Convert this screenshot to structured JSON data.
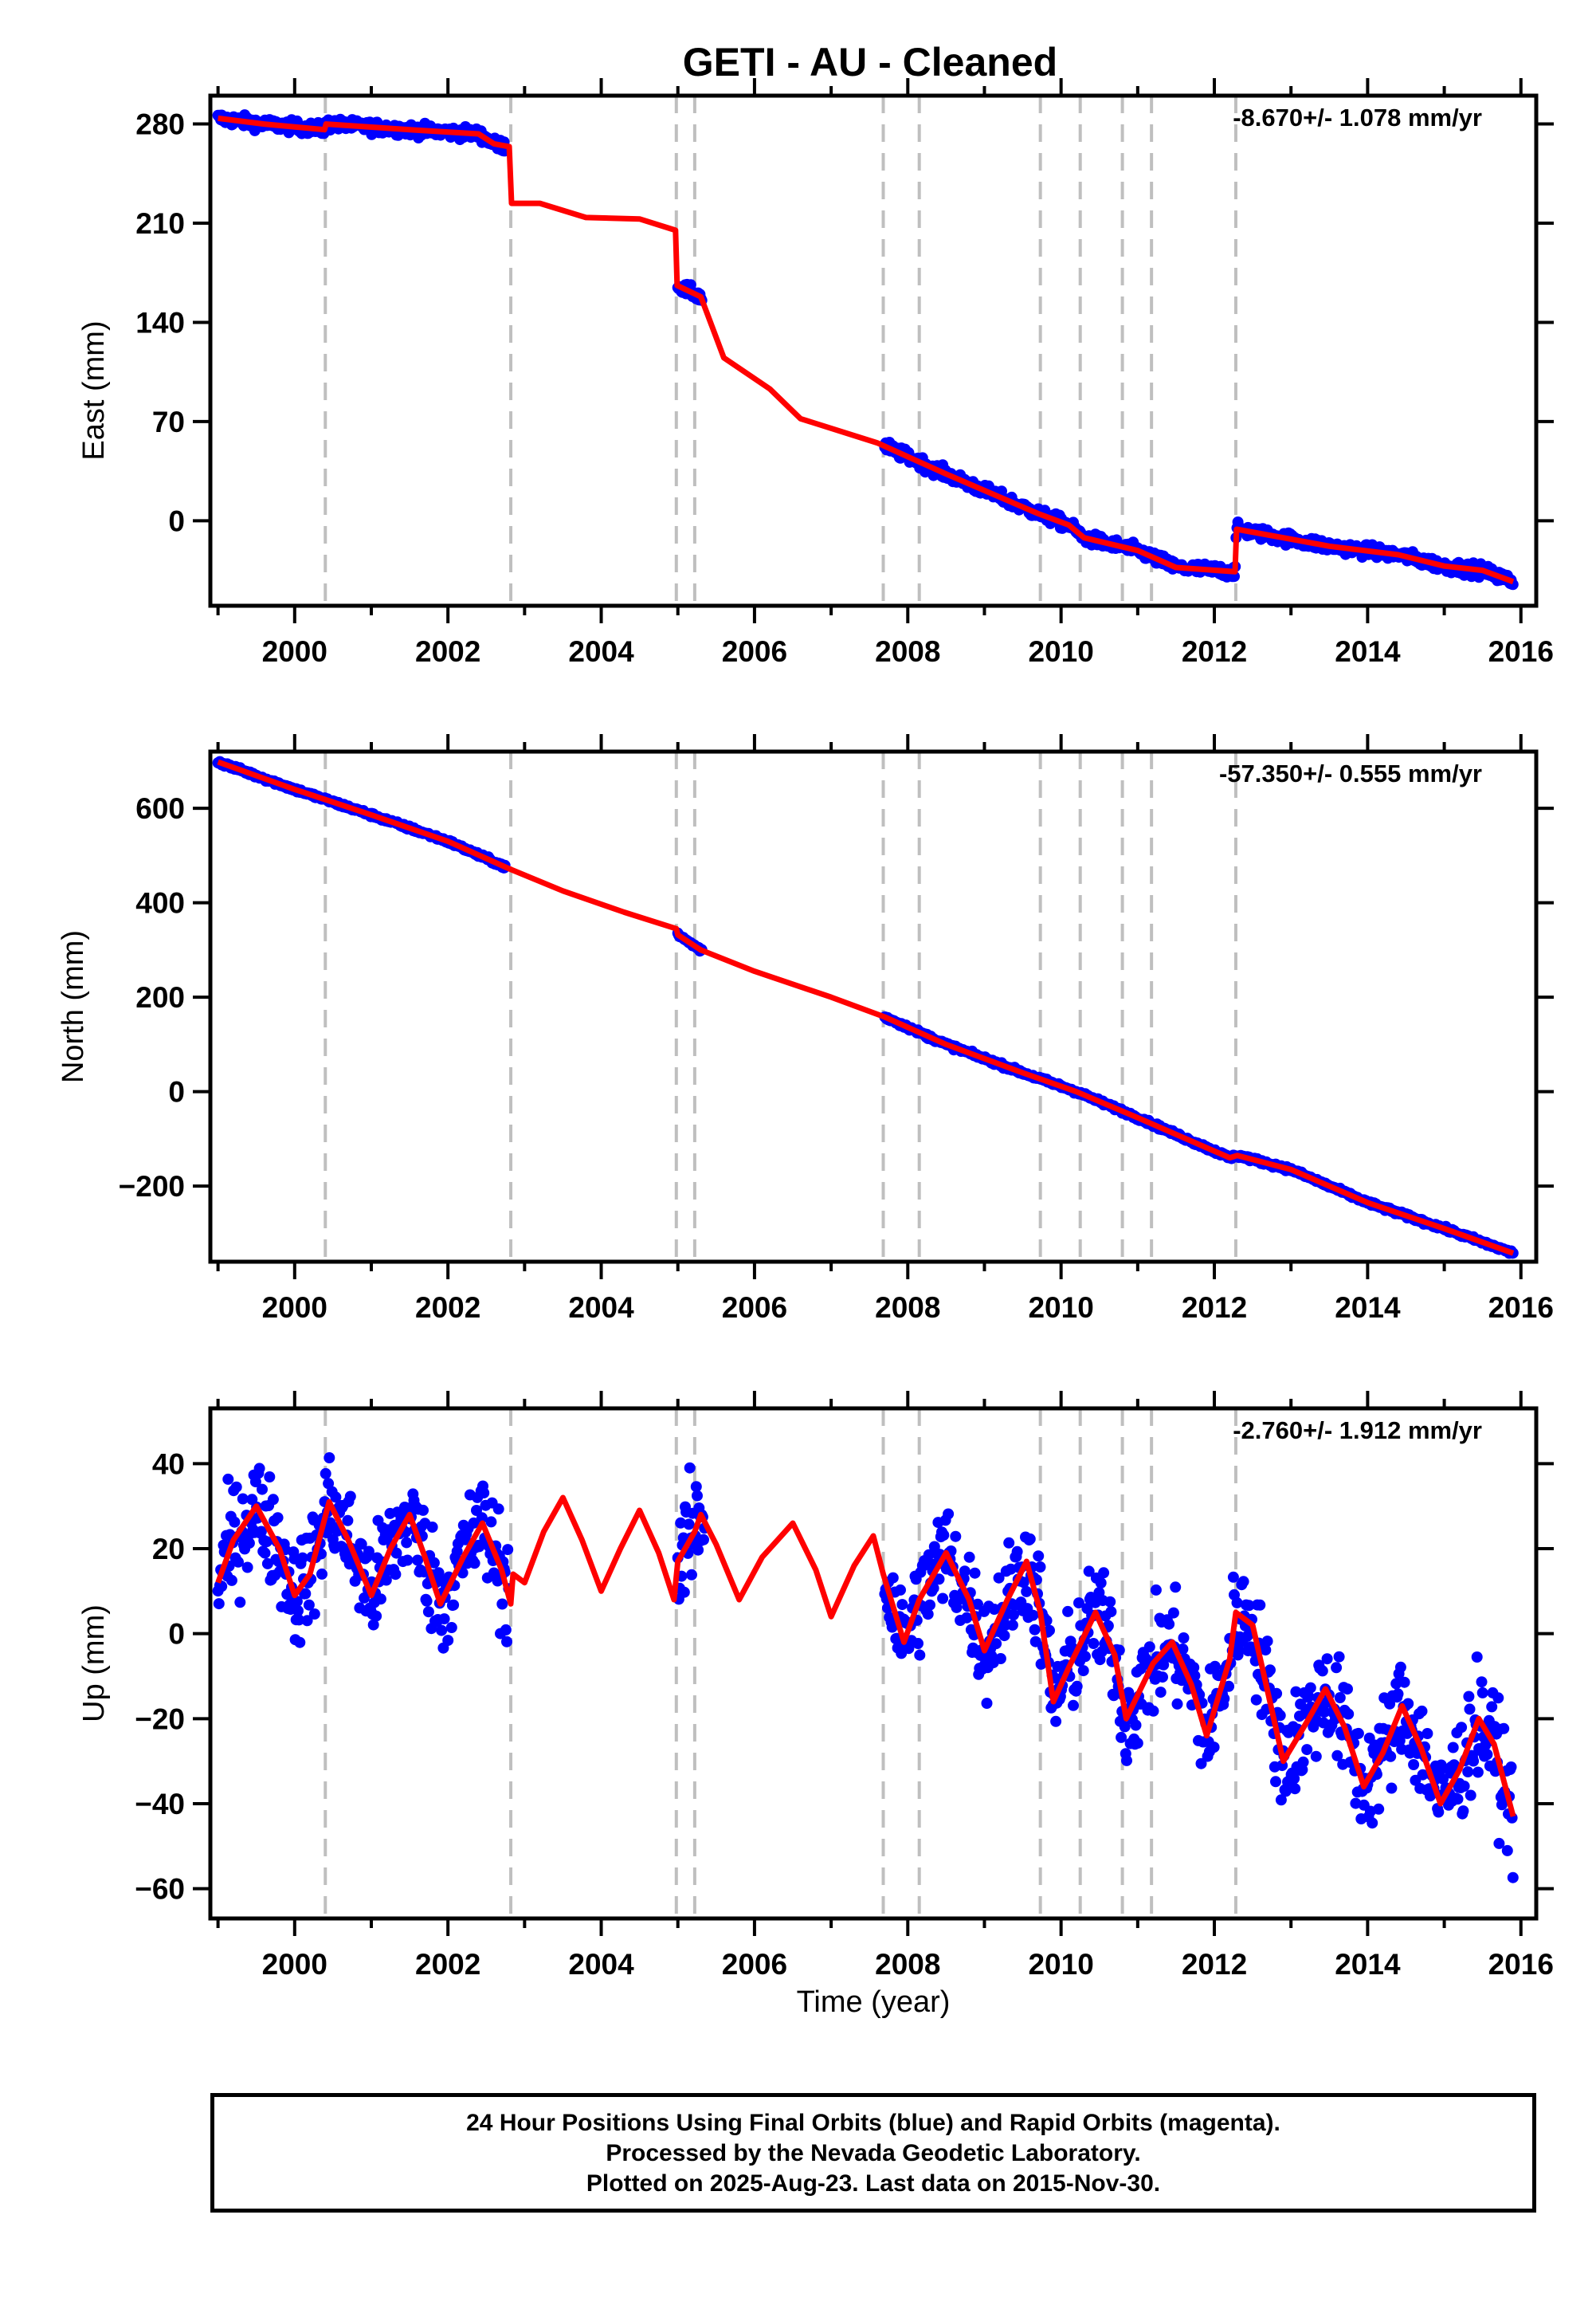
{
  "title": "GETI  - AU - Cleaned",
  "xlabel": "Time (year)",
  "footer": {
    "line1": "24 Hour Positions Using Final Orbits (blue) and Rapid Orbits (magenta).",
    "line2": "Processed by the Nevada Geodetic Laboratory.",
    "line3": "Plotted on 2025-Aug-23. Last data on 2015-Nov-30."
  },
  "colors": {
    "data": "#0000ff",
    "model": "#ff0000",
    "breaks": "#bfbfbf"
  },
  "chart_data": [
    {
      "type": "scatter",
      "component": "east",
      "ylabel": "East (mm)",
      "rate_label": "-8.670+/- 1.078 mm/yr",
      "xlim": [
        1998.9,
        2016.2
      ],
      "ylim": [
        -60,
        300
      ],
      "xticks": [
        2000,
        2002,
        2004,
        2006,
        2008,
        2010,
        2012,
        2014,
        2016
      ],
      "yticks": [
        280,
        210,
        140,
        70,
        0
      ],
      "breaks": [
        2000.4,
        2002.82,
        2004.98,
        2005.22,
        2007.68,
        2008.15,
        2009.73,
        2010.25,
        2010.8,
        2011.18,
        2012.28
      ],
      "data_segments": [
        [
          1999.0,
          2002.75
        ],
        [
          2005.0,
          2005.32
        ],
        [
          2007.7,
          2015.9
        ]
      ],
      "model": [
        [
          1999.0,
          284
        ],
        [
          1999.6,
          280
        ],
        [
          2000.39,
          276
        ],
        [
          2000.41,
          280
        ],
        [
          2001.5,
          276
        ],
        [
          2002.4,
          273
        ],
        [
          2002.6,
          266
        ],
        [
          2002.8,
          264
        ],
        [
          2002.83,
          224
        ],
        [
          2003.2,
          224
        ],
        [
          2003.8,
          214
        ],
        [
          2004.5,
          213
        ],
        [
          2004.97,
          205
        ],
        [
          2004.99,
          166
        ],
        [
          2005.3,
          158
        ],
        [
          2005.6,
          115
        ],
        [
          2006.2,
          93
        ],
        [
          2006.6,
          72
        ],
        [
          2007.6,
          55
        ],
        [
          2008.5,
          33
        ],
        [
          2009.7,
          5
        ],
        [
          2010.1,
          -3
        ],
        [
          2010.3,
          -12
        ],
        [
          2011.0,
          -21
        ],
        [
          2011.5,
          -33
        ],
        [
          2012.27,
          -36
        ],
        [
          2012.29,
          -6
        ],
        [
          2013.0,
          -13
        ],
        [
          2013.5,
          -18
        ],
        [
          2014.4,
          -24
        ],
        [
          2015.0,
          -32
        ],
        [
          2015.5,
          -35
        ],
        [
          2015.9,
          -43
        ]
      ],
      "scatter": 4
    },
    {
      "type": "scatter",
      "component": "north",
      "ylabel": "North (mm)",
      "rate_label": "-57.350+/- 0.555 mm/yr",
      "xlim": [
        1998.9,
        2016.2
      ],
      "ylim": [
        -360,
        720
      ],
      "xticks": [
        2000,
        2002,
        2004,
        2006,
        2008,
        2010,
        2012,
        2014,
        2016
      ],
      "yticks": [
        600,
        400,
        200,
        0,
        -200
      ],
      "breaks": [
        2000.4,
        2002.82,
        2004.98,
        2005.22,
        2007.68,
        2008.15,
        2009.73,
        2010.25,
        2010.8,
        2011.18,
        2012.28
      ],
      "data_segments": [
        [
          1999.0,
          2002.75
        ],
        [
          2005.0,
          2005.32
        ],
        [
          2007.7,
          2015.9
        ]
      ],
      "model": [
        [
          1999.0,
          698
        ],
        [
          2000.0,
          640
        ],
        [
          2001.0,
          586
        ],
        [
          2002.0,
          530
        ],
        [
          2002.8,
          472
        ],
        [
          2003.5,
          425
        ],
        [
          2004.3,
          380
        ],
        [
          2004.98,
          345
        ],
        [
          2005.0,
          332
        ],
        [
          2005.3,
          300
        ],
        [
          2006.0,
          255
        ],
        [
          2007.0,
          200
        ],
        [
          2007.7,
          158
        ],
        [
          2008.5,
          100
        ],
        [
          2009.5,
          40
        ],
        [
          2010.2,
          0
        ],
        [
          2011.0,
          -55
        ],
        [
          2012.2,
          -140
        ],
        [
          2012.3,
          -135
        ],
        [
          2013.0,
          -165
        ],
        [
          2014.0,
          -235
        ],
        [
          2015.0,
          -290
        ],
        [
          2015.9,
          -342
        ]
      ],
      "scatter": 4
    },
    {
      "type": "scatter",
      "component": "up",
      "ylabel": "Up (mm)",
      "rate_label": "-2.760+/- 1.912 mm/yr",
      "xlim": [
        1998.9,
        2016.2
      ],
      "ylim": [
        -67,
        53
      ],
      "xticks": [
        2000,
        2002,
        2004,
        2006,
        2008,
        2010,
        2012,
        2014,
        2016
      ],
      "yticks": [
        40,
        20,
        0,
        -20,
        -40,
        -60
      ],
      "breaks": [
        2000.4,
        2002.82,
        2004.98,
        2005.22,
        2007.68,
        2008.15,
        2009.73,
        2010.25,
        2010.8,
        2011.18,
        2012.28
      ],
      "data_segments": [
        [
          1999.0,
          2002.8
        ],
        [
          2005.0,
          2005.35
        ],
        [
          2007.7,
          2015.9
        ]
      ],
      "model": [
        [
          1999.0,
          12
        ],
        [
          1999.2,
          22
        ],
        [
          1999.5,
          30
        ],
        [
          1999.8,
          20
        ],
        [
          2000.0,
          9
        ],
        [
          2000.2,
          14
        ],
        [
          2000.45,
          31
        ],
        [
          2000.7,
          22
        ],
        [
          2001.0,
          9
        ],
        [
          2001.25,
          20
        ],
        [
          2001.5,
          28
        ],
        [
          2001.7,
          18
        ],
        [
          2001.9,
          7
        ],
        [
          2002.2,
          18
        ],
        [
          2002.45,
          26
        ],
        [
          2002.7,
          15
        ],
        [
          2002.82,
          7
        ],
        [
          2002.85,
          14
        ],
        [
          2003.0,
          12
        ],
        [
          2003.25,
          24
        ],
        [
          2003.5,
          32
        ],
        [
          2003.75,
          22
        ],
        [
          2004.0,
          10
        ],
        [
          2004.25,
          20
        ],
        [
          2004.5,
          29
        ],
        [
          2004.75,
          19
        ],
        [
          2004.95,
          8
        ],
        [
          2005.0,
          17
        ],
        [
          2005.22,
          24
        ],
        [
          2005.3,
          28
        ],
        [
          2005.5,
          21
        ],
        [
          2005.8,
          8
        ],
        [
          2006.1,
          18
        ],
        [
          2006.5,
          26
        ],
        [
          2006.8,
          15
        ],
        [
          2007.0,
          4
        ],
        [
          2007.3,
          16
        ],
        [
          2007.55,
          23
        ],
        [
          2007.68,
          14
        ],
        [
          2007.95,
          -2
        ],
        [
          2008.15,
          8
        ],
        [
          2008.5,
          19
        ],
        [
          2008.8,
          8
        ],
        [
          2009.0,
          -4
        ],
        [
          2009.3,
          8
        ],
        [
          2009.55,
          17
        ],
        [
          2009.73,
          5
        ],
        [
          2009.9,
          -16
        ],
        [
          2010.1,
          -8
        ],
        [
          2010.45,
          5
        ],
        [
          2010.7,
          -5
        ],
        [
          2010.85,
          -20
        ],
        [
          2011.2,
          -7
        ],
        [
          2011.45,
          -2
        ],
        [
          2011.7,
          -12
        ],
        [
          2011.9,
          -24
        ],
        [
          2012.2,
          -6
        ],
        [
          2012.28,
          5
        ],
        [
          2012.5,
          2
        ],
        [
          2012.7,
          -14
        ],
        [
          2012.9,
          -30
        ],
        [
          2013.2,
          -21
        ],
        [
          2013.45,
          -13
        ],
        [
          2013.7,
          -22
        ],
        [
          2013.95,
          -36
        ],
        [
          2014.2,
          -28
        ],
        [
          2014.45,
          -17
        ],
        [
          2014.7,
          -27
        ],
        [
          2014.95,
          -40
        ],
        [
          2015.2,
          -32
        ],
        [
          2015.45,
          -20
        ],
        [
          2015.65,
          -26
        ],
        [
          2015.9,
          -43
        ]
      ],
      "scatter": 12
    }
  ]
}
